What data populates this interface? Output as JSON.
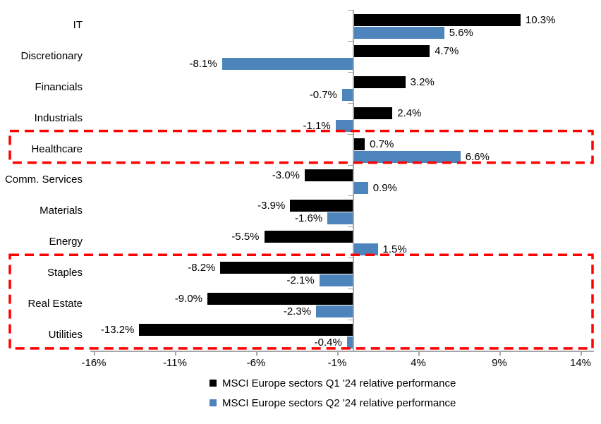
{
  "chart_data": {
    "type": "bar",
    "orientation": "horizontal",
    "title": "",
    "categories": [
      "IT",
      "Discretionary",
      "Financials",
      "Industrials",
      "Healthcare",
      "Comm. Services",
      "Materials",
      "Energy",
      "Staples",
      "Real Estate",
      "Utilities"
    ],
    "series": [
      {
        "name": "MSCI Europe sectors Q1 '24 relative performance",
        "color": "#000000",
        "values": [
          10.3,
          4.7,
          3.2,
          2.4,
          0.7,
          -3.0,
          -3.9,
          -5.5,
          -8.2,
          -9.0,
          -13.2
        ]
      },
      {
        "name": "MSCI Europe sectors Q2 '24 relative performance",
        "color": "#4e84bc",
        "values": [
          5.6,
          -8.1,
          -0.7,
          -1.1,
          6.6,
          0.9,
          -1.6,
          1.5,
          -2.1,
          -2.3,
          -0.4
        ]
      }
    ],
    "value_label_format": "one-decimal-percent",
    "x_tick_labels": [
      "-16%",
      "-11%",
      "-6%",
      "-1%",
      "4%",
      "9%",
      "14%"
    ],
    "x_tick_values": [
      -16,
      -11,
      -6,
      -1,
      4,
      9,
      14
    ],
    "xlim": [
      -16.3,
      15
    ],
    "grid": false,
    "legend_position": "bottom",
    "axis_color": "#a6a6a6",
    "highlights": [
      {
        "name": "healthcare-highlight-box",
        "from": "Healthcare",
        "to": "Healthcare",
        "color": "#ff0000"
      },
      {
        "name": "staples-realestate-utilities-highlight-box",
        "from": "Staples",
        "to": "Utilities",
        "color": "#ff0000"
      }
    ]
  }
}
